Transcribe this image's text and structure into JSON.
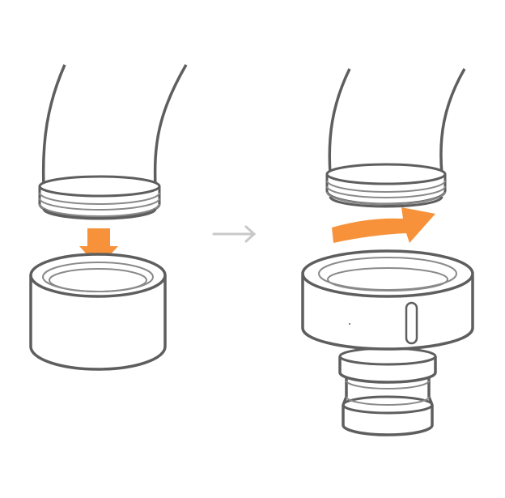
{
  "diagram": {
    "steps": [
      {
        "id": "step-1",
        "action": "push"
      },
      {
        "id": "step-2",
        "action": "twist"
      }
    ],
    "colors": {
      "outline": "#5e5e5e",
      "inner_line": "#8a8a8a",
      "fill": "#ffffff",
      "accent": "#f7923a",
      "connector_arrow": "#c8c8c8"
    },
    "icons": [
      "pipe-icon",
      "coupling-icon",
      "hose-connector-icon",
      "push-down-arrow-icon",
      "twist-arrow-icon",
      "next-step-arrow-icon"
    ]
  }
}
